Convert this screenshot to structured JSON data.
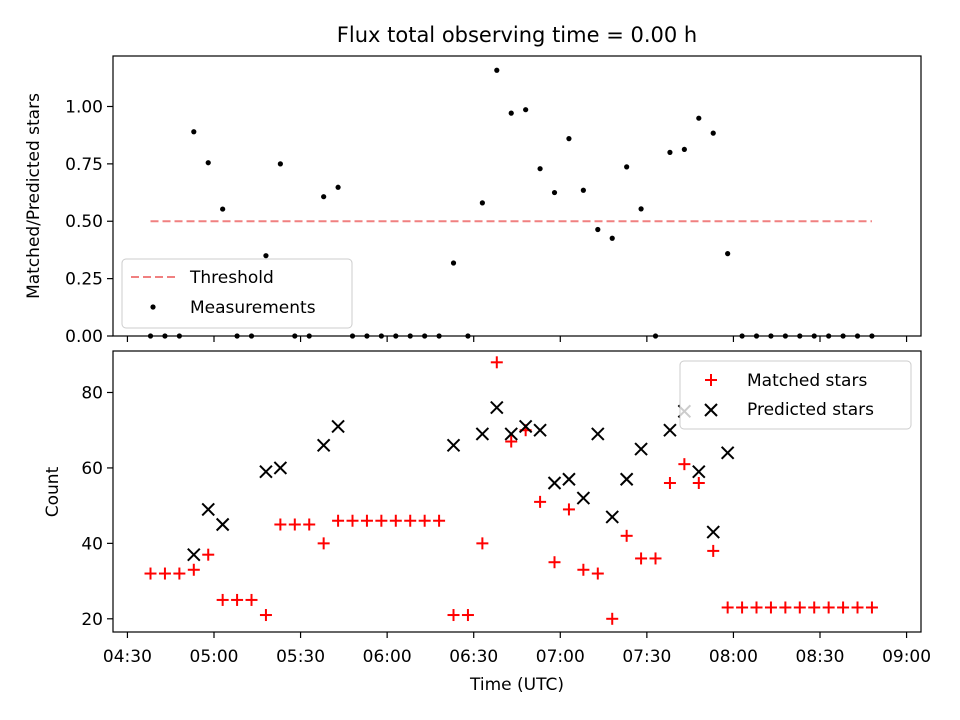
{
  "chart_data": [
    {
      "type": "scatter",
      "title": "Flux total observing time = 0.00 h",
      "ylabel": "Matched/Predicted stars",
      "xlabel": "",
      "ylim": [
        0,
        1.22
      ],
      "yticks": [
        "0.00",
        "0.25",
        "0.50",
        "0.75",
        "1.00"
      ],
      "ytick_values": [
        0,
        0.25,
        0.5,
        0.75,
        1.0
      ],
      "legend": {
        "placement": "lower-left",
        "items": [
          "Threshold",
          "Measurements"
        ]
      },
      "threshold": {
        "name": "Threshold",
        "value": 0.5,
        "x_start": "04:38",
        "x_end": "08:48",
        "color": "#f08080"
      },
      "series": [
        {
          "name": "Measurements",
          "color": "#000000",
          "points": [
            [
              "04:38",
              0
            ],
            [
              "04:43",
              0
            ],
            [
              "04:48",
              0
            ],
            [
              "04:53",
              0.89
            ],
            [
              "04:58",
              0.755
            ],
            [
              "05:03",
              0.553
            ],
            [
              "05:08",
              0
            ],
            [
              "05:13",
              0
            ],
            [
              "05:18",
              0.35
            ],
            [
              "05:23",
              0.75
            ],
            [
              "05:28",
              0
            ],
            [
              "05:33",
              0
            ],
            [
              "05:38",
              0.607
            ],
            [
              "05:43",
              0.648
            ],
            [
              "05:48",
              0
            ],
            [
              "05:53",
              0
            ],
            [
              "05:58",
              0
            ],
            [
              "06:03",
              0
            ],
            [
              "06:08",
              0
            ],
            [
              "06:13",
              0
            ],
            [
              "06:18",
              0
            ],
            [
              "06:23",
              0.318
            ],
            [
              "06:28",
              0
            ],
            [
              "06:33",
              0.58
            ],
            [
              "06:38",
              1.158
            ],
            [
              "06:43",
              0.971
            ],
            [
              "06:48",
              0.986
            ],
            [
              "06:53",
              0.729
            ],
            [
              "06:58",
              0.625
            ],
            [
              "07:03",
              0.86
            ],
            [
              "07:08",
              0.635
            ],
            [
              "07:13",
              0.464
            ],
            [
              "07:18",
              0.426
            ],
            [
              "07:23",
              0.737
            ],
            [
              "07:28",
              0.554
            ],
            [
              "07:33",
              0
            ],
            [
              "07:38",
              0.8
            ],
            [
              "07:43",
              0.813
            ],
            [
              "07:48",
              0.949
            ],
            [
              "07:53",
              0.884
            ],
            [
              "07:58",
              0.359
            ],
            [
              "08:03",
              0
            ],
            [
              "08:08",
              0
            ],
            [
              "08:13",
              0
            ],
            [
              "08:18",
              0
            ],
            [
              "08:23",
              0
            ],
            [
              "08:28",
              0
            ],
            [
              "08:33",
              0
            ],
            [
              "08:38",
              0
            ],
            [
              "08:43",
              0
            ],
            [
              "08:48",
              0
            ]
          ]
        }
      ]
    },
    {
      "type": "scatter",
      "title": "",
      "ylabel": "Count",
      "xlabel": "Time (UTC)",
      "xlim": [
        "04:25",
        "09:05"
      ],
      "xticks": [
        "04:30",
        "05:00",
        "05:30",
        "06:00",
        "06:30",
        "07:00",
        "07:30",
        "08:00",
        "08:30",
        "09:00"
      ],
      "ylim": [
        16.5,
        91
      ],
      "yticks": [
        "20",
        "40",
        "60",
        "80"
      ],
      "ytick_values": [
        20,
        40,
        60,
        80
      ],
      "legend": {
        "placement": "upper-right",
        "items": [
          "Matched stars",
          "Predicted stars"
        ]
      },
      "series": [
        {
          "name": "Matched stars",
          "marker": "+",
          "color": "#ff0000",
          "points": [
            [
              "04:38",
              32
            ],
            [
              "04:43",
              32
            ],
            [
              "04:48",
              32
            ],
            [
              "04:53",
              33
            ],
            [
              "04:58",
              37
            ],
            [
              "05:03",
              25
            ],
            [
              "05:08",
              25
            ],
            [
              "05:13",
              25
            ],
            [
              "05:18",
              21
            ],
            [
              "05:23",
              45
            ],
            [
              "05:28",
              45
            ],
            [
              "05:33",
              45
            ],
            [
              "05:38",
              40
            ],
            [
              "05:43",
              46
            ],
            [
              "05:48",
              46
            ],
            [
              "05:53",
              46
            ],
            [
              "05:58",
              46
            ],
            [
              "06:03",
              46
            ],
            [
              "06:08",
              46
            ],
            [
              "06:13",
              46
            ],
            [
              "06:18",
              46
            ],
            [
              "06:23",
              21
            ],
            [
              "06:28",
              21
            ],
            [
              "06:33",
              40
            ],
            [
              "06:38",
              88
            ],
            [
              "06:43",
              67
            ],
            [
              "06:48",
              70
            ],
            [
              "06:53",
              51
            ],
            [
              "06:58",
              35
            ],
            [
              "07:03",
              49
            ],
            [
              "07:08",
              33
            ],
            [
              "07:13",
              32
            ],
            [
              "07:18",
              20
            ],
            [
              "07:23",
              42
            ],
            [
              "07:28",
              36
            ],
            [
              "07:33",
              36
            ],
            [
              "07:38",
              56
            ],
            [
              "07:43",
              61
            ],
            [
              "07:48",
              56
            ],
            [
              "07:53",
              38
            ],
            [
              "07:58",
              23
            ],
            [
              "08:03",
              23
            ],
            [
              "08:08",
              23
            ],
            [
              "08:13",
              23
            ],
            [
              "08:18",
              23
            ],
            [
              "08:23",
              23
            ],
            [
              "08:28",
              23
            ],
            [
              "08:33",
              23
            ],
            [
              "08:38",
              23
            ],
            [
              "08:43",
              23
            ],
            [
              "08:48",
              23
            ]
          ]
        },
        {
          "name": "Predicted stars",
          "marker": "x",
          "color": "#000000",
          "points": [
            [
              "04:53",
              37
            ],
            [
              "04:58",
              49
            ],
            [
              "05:03",
              45
            ],
            [
              "05:18",
              59
            ],
            [
              "05:23",
              60
            ],
            [
              "05:38",
              66
            ],
            [
              "05:43",
              71
            ],
            [
              "06:23",
              66
            ],
            [
              "06:33",
              69
            ],
            [
              "06:38",
              76
            ],
            [
              "06:43",
              69
            ],
            [
              "06:48",
              71
            ],
            [
              "06:53",
              70
            ],
            [
              "06:58",
              56
            ],
            [
              "07:03",
              57
            ],
            [
              "07:08",
              52
            ],
            [
              "07:13",
              69
            ],
            [
              "07:18",
              47
            ],
            [
              "07:23",
              57
            ],
            [
              "07:28",
              65
            ],
            [
              "07:38",
              70
            ],
            [
              "07:43",
              75
            ],
            [
              "07:48",
              59
            ],
            [
              "07:53",
              43
            ],
            [
              "07:58",
              64
            ]
          ]
        }
      ]
    }
  ]
}
